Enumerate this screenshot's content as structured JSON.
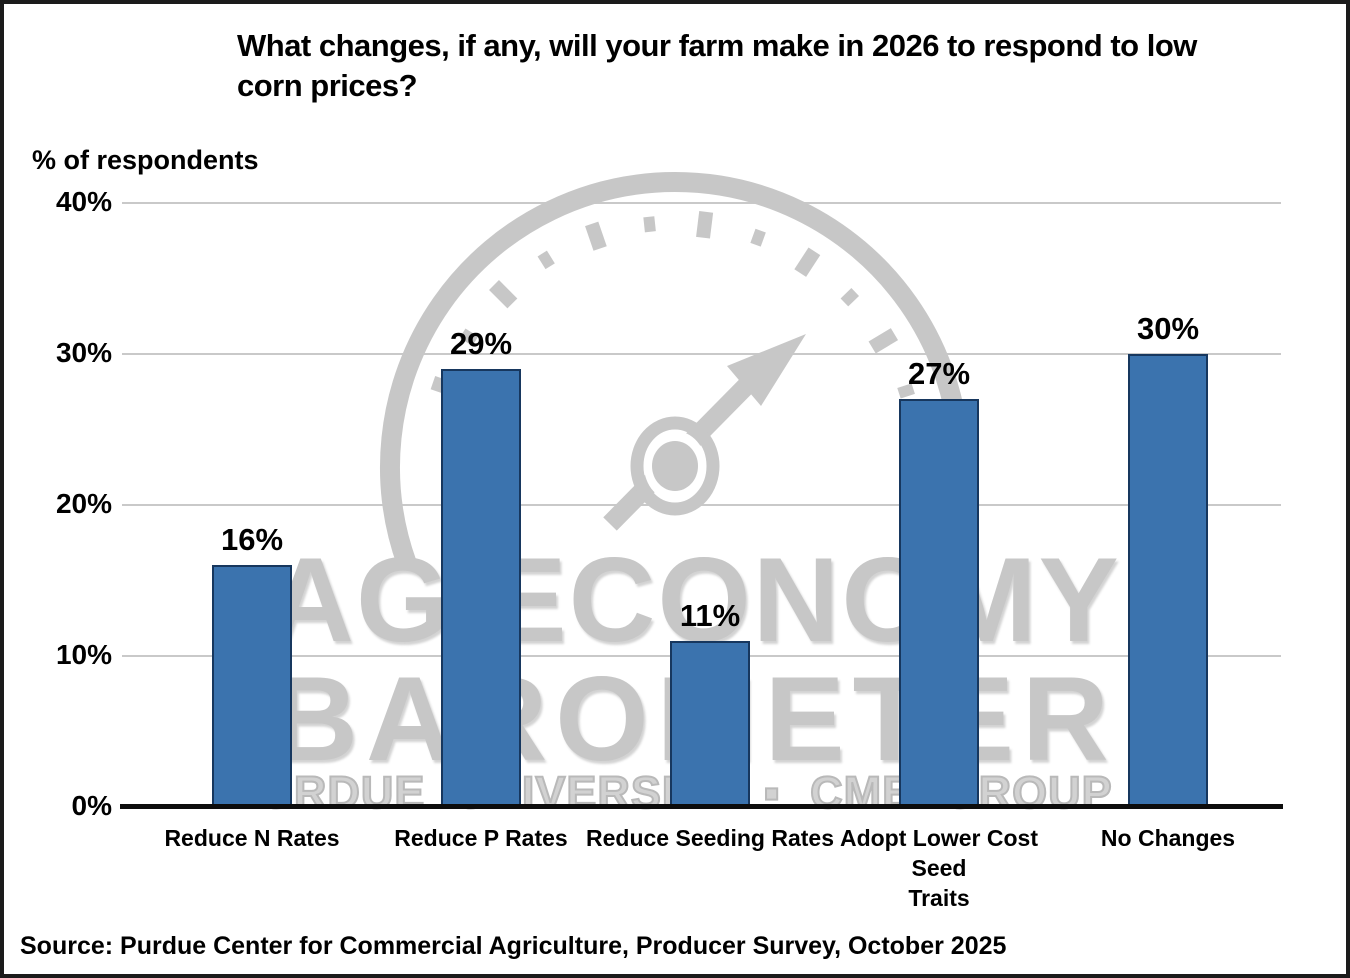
{
  "chart_data": {
    "type": "bar",
    "title": "What changes, if any, will your farm make in 2026 to respond to low corn prices?",
    "title_lines": [
      "What changes, if any, will your farm make in 2026 to respond to low",
      "corn prices?"
    ],
    "axis_note": "% of respondents",
    "categories": [
      "Reduce N Rates",
      "Reduce P Rates",
      "Reduce Seeding Rates",
      "Adopt Lower Cost Seed Traits",
      "No Changes"
    ],
    "category_lines": [
      [
        "Reduce N Rates"
      ],
      [
        "Reduce P Rates"
      ],
      [
        "Reduce Seeding Rates"
      ],
      [
        "Adopt Lower Cost Seed",
        "Traits"
      ],
      [
        "No Changes"
      ]
    ],
    "values": [
      16,
      29,
      11,
      27,
      30
    ],
    "value_labels": [
      "16%",
      "29%",
      "11%",
      "27%",
      "30%"
    ],
    "xlabel": "",
    "ylabel": "% of respondents",
    "y_axis": {
      "ticks": [
        {
          "label": "0%",
          "value": 0
        },
        {
          "label": "10%",
          "value": 10
        },
        {
          "label": "20%",
          "value": 20
        },
        {
          "label": "30%",
          "value": 30
        },
        {
          "label": "40%",
          "value": 40
        }
      ],
      "range": [
        0,
        40
      ],
      "grid": true
    },
    "legend": "none",
    "colors": {
      "bar_fill": "#3b73ae",
      "bar_border": "#17375e",
      "gridline": "#c9c9c9",
      "axis_line": "#0d0d0d",
      "text": "#000000",
      "watermark": "#c7c7c7"
    }
  },
  "watermark": {
    "line1": "AG ECONOMY",
    "line2": "BAROMETER",
    "line3": "PURDUE UNIVERSITY ▪ CME GROUP"
  },
  "source_line": "Source: Purdue Center for Commercial Agriculture, Producer Survey, October 2025"
}
